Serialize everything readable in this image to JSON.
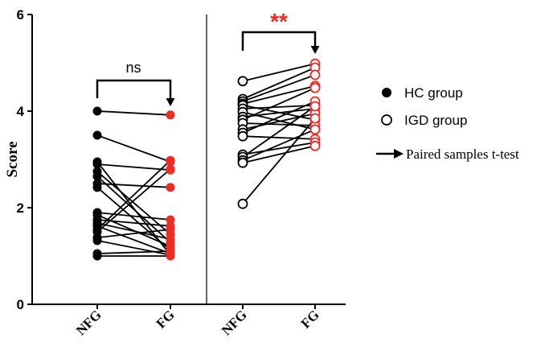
{
  "chart_data": {
    "type": "scatter",
    "ylabel": "Score",
    "ylim": [
      0,
      6
    ],
    "yticks": [
      0,
      2,
      4,
      6
    ],
    "categories": [
      "NFG",
      "FG",
      "NFG",
      "FG"
    ],
    "groups": [
      {
        "name": "HC group",
        "marker": "filled",
        "conditions": [
          "NFG",
          "FG"
        ],
        "significance": "ns",
        "pairs": [
          [
            4.0,
            3.92
          ],
          [
            3.5,
            2.95
          ],
          [
            2.95,
            1.02
          ],
          [
            2.9,
            2.78
          ],
          [
            2.75,
            1.45
          ],
          [
            2.65,
            1.28
          ],
          [
            2.5,
            2.42
          ],
          [
            2.42,
            1.12
          ],
          [
            1.9,
            1.75
          ],
          [
            1.85,
            1.2
          ],
          [
            1.75,
            1.62
          ],
          [
            1.68,
            1.35
          ],
          [
            1.62,
            1.05
          ],
          [
            1.55,
            2.98
          ],
          [
            1.5,
            2.8
          ],
          [
            1.38,
            1.55
          ],
          [
            1.32,
            1.02
          ],
          [
            1.05,
            1.1
          ],
          [
            1.0,
            1.0
          ]
        ]
      },
      {
        "name": "IGD group",
        "marker": "open",
        "conditions": [
          "NFG",
          "FG"
        ],
        "significance": "**",
        "pairs": [
          [
            4.62,
            4.98
          ],
          [
            4.25,
            4.9
          ],
          [
            4.2,
            4.75
          ],
          [
            4.15,
            4.52
          ],
          [
            4.12,
            3.82
          ],
          [
            4.05,
            4.12
          ],
          [
            3.98,
            3.62
          ],
          [
            3.88,
            4.05
          ],
          [
            3.82,
            4.48
          ],
          [
            3.75,
            3.7
          ],
          [
            3.62,
            3.95
          ],
          [
            3.55,
            4.2
          ],
          [
            3.48,
            3.42
          ],
          [
            3.1,
            3.35
          ],
          [
            3.05,
            4.1
          ],
          [
            2.98,
            3.62
          ],
          [
            2.93,
            3.28
          ],
          [
            2.08,
            3.85
          ]
        ]
      }
    ],
    "legend": {
      "position": "right",
      "entries": [
        "HC group",
        "IGD group",
        "Paired samples t-test"
      ]
    }
  },
  "colors": {
    "axis": "#000000",
    "hc_nfg": "#000000",
    "fg_marker": "#ee2b24",
    "significance_star": "#ee2b24",
    "line": "#000000"
  }
}
